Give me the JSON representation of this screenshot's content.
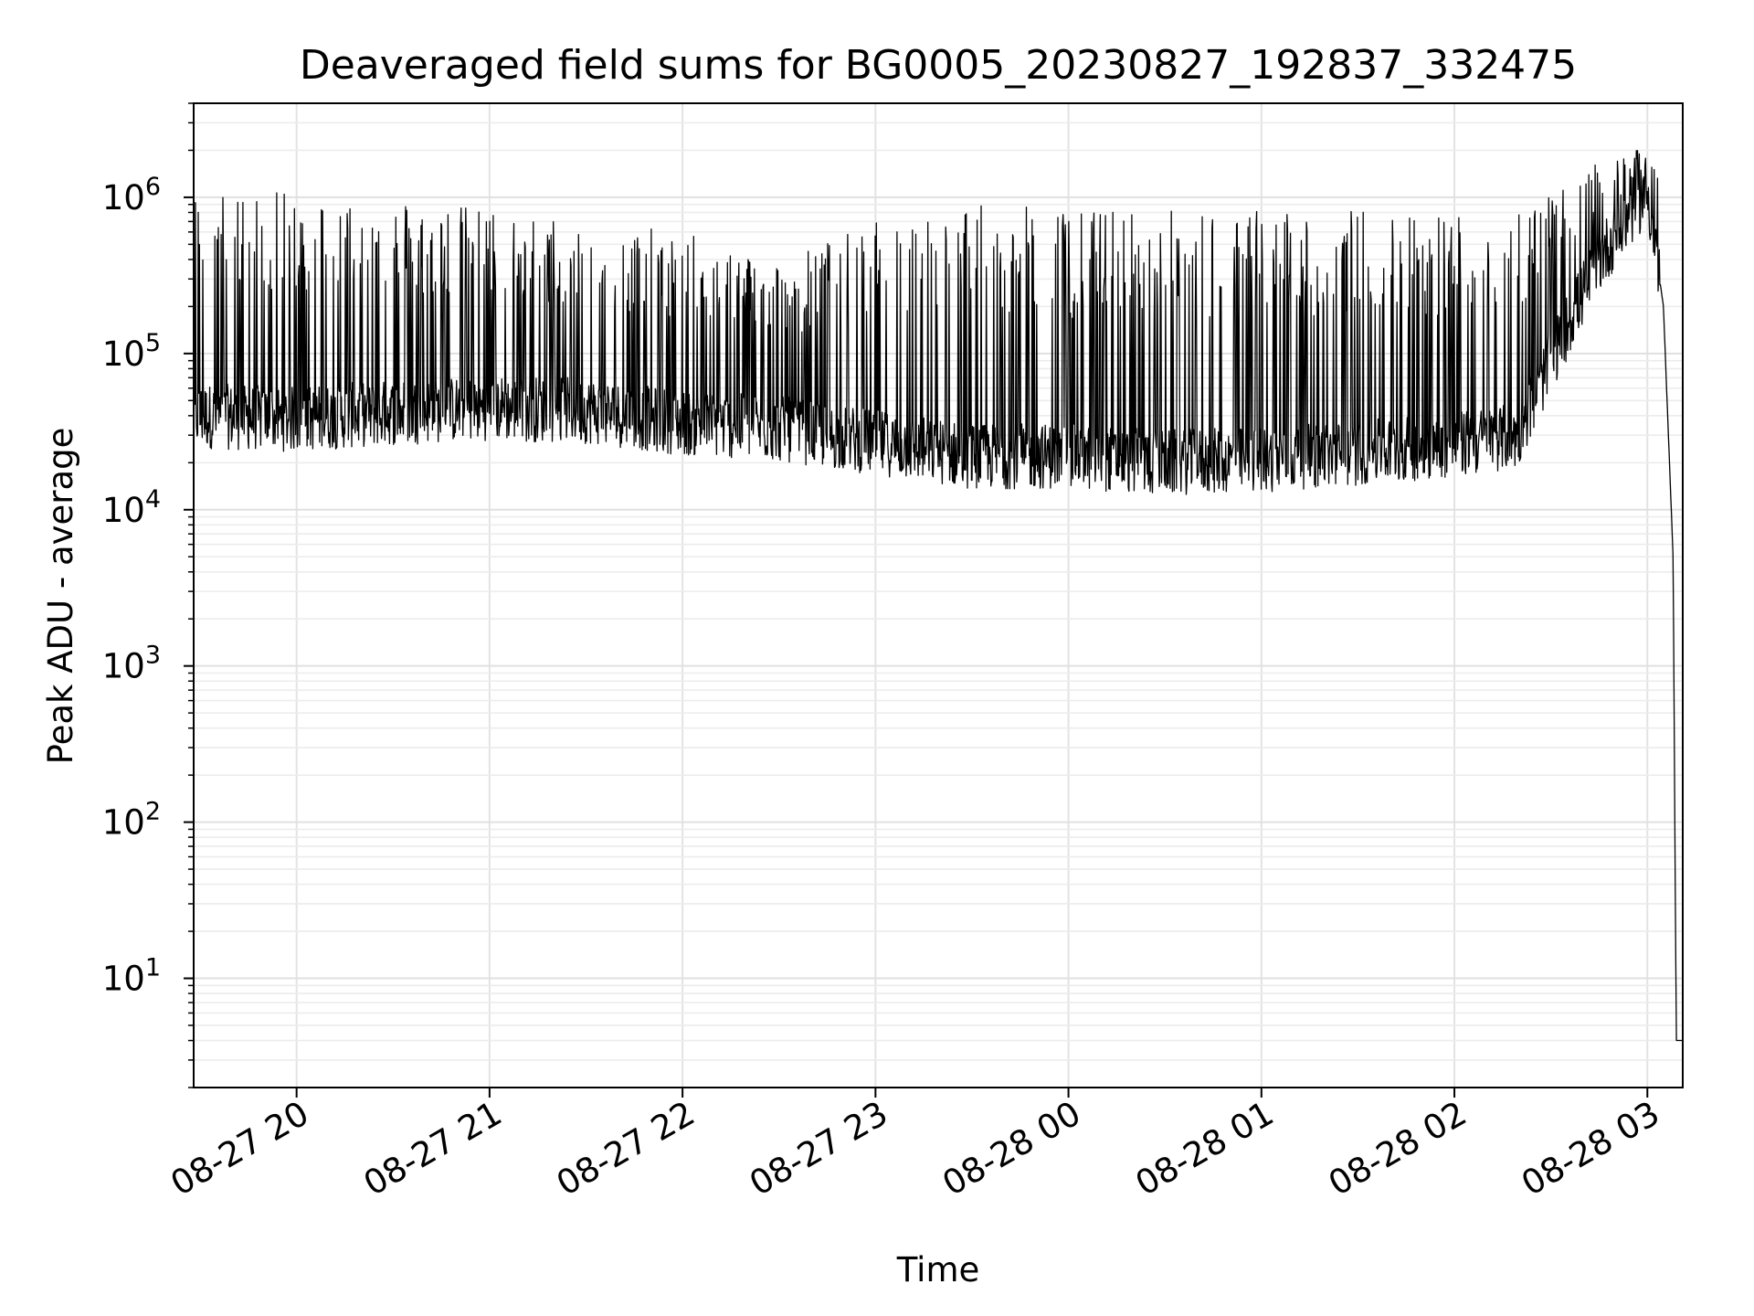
{
  "chart_data": {
    "type": "line",
    "title": "Deaveraged field sums for BG0005_20230827_192837_332475",
    "xlabel": "Time",
    "ylabel": "Peak ADU - average",
    "yscale": "log",
    "ylim": [
      2,
      4000000
    ],
    "xlim": [
      "2023-08-27 19:28",
      "2023-08-28 03:11"
    ],
    "grid": true,
    "grid_minor": true,
    "x_ticks": [
      "08-27 20",
      "08-27 21",
      "08-27 22",
      "08-27 23",
      "08-28 00",
      "08-28 01",
      "08-28 02",
      "08-28 03"
    ],
    "y_ticks": [
      {
        "base": "10",
        "exp": "1"
      },
      {
        "base": "10",
        "exp": "2"
      },
      {
        "base": "10",
        "exp": "3"
      },
      {
        "base": "10",
        "exp": "4"
      },
      {
        "base": "10",
        "exp": "5"
      },
      {
        "base": "10",
        "exp": "6"
      }
    ],
    "series": [
      {
        "color": "#000000",
        "baseline": [
          [
            "2023-08-27 19:28",
            40000
          ],
          [
            "2023-08-27 20:00",
            38000
          ],
          [
            "2023-08-27 20:30",
            42000
          ],
          [
            "2023-08-27 21:00",
            45000
          ],
          [
            "2023-08-27 21:30",
            43000
          ],
          [
            "2023-08-27 22:00",
            36000
          ],
          [
            "2023-08-27 22:30",
            33000
          ],
          [
            "2023-08-27 23:00",
            27000
          ],
          [
            "2023-08-27 23:30",
            22000
          ],
          [
            "2023-08-28 00:00",
            22000
          ],
          [
            "2023-08-28 00:30",
            20000
          ],
          [
            "2023-08-28 01:00",
            21000
          ],
          [
            "2023-08-28 01:30",
            23000
          ],
          [
            "2023-08-28 02:00",
            26000
          ],
          [
            "2023-08-28 02:20",
            30000
          ],
          [
            "2023-08-28 02:30",
            90000
          ],
          [
            "2023-08-28 02:45",
            400000
          ],
          [
            "2023-08-28 02:55",
            800000
          ],
          [
            "2023-08-28 03:00",
            1100000
          ],
          [
            "2023-08-28 03:05",
            200000
          ],
          [
            "2023-08-28 03:08",
            5000
          ],
          [
            "2023-08-28 03:09",
            4
          ],
          [
            "2023-08-28 03:11",
            4
          ]
        ],
        "peaks": [
          [
            "2023-08-27 19:45",
            1100000
          ],
          [
            "2023-08-27 20:10",
            1050000
          ],
          [
            "2023-08-27 20:30",
            1000000
          ],
          [
            "2023-08-27 21:00",
            850000
          ],
          [
            "2023-08-27 21:30",
            700000
          ],
          [
            "2023-08-27 22:00",
            600000
          ],
          [
            "2023-08-27 22:30",
            400000
          ],
          [
            "2023-08-27 23:00",
            700000
          ],
          [
            "2023-08-27 23:30",
            900000
          ],
          [
            "2023-08-28 00:00",
            850000
          ],
          [
            "2023-08-28 00:30",
            850000
          ],
          [
            "2023-08-28 01:00",
            850000
          ],
          [
            "2023-08-28 01:30",
            850000
          ],
          [
            "2023-08-28 02:00",
            850000
          ],
          [
            "2023-08-28 02:30",
            1000000
          ],
          [
            "2023-08-28 02:50",
            2000000
          ]
        ]
      }
    ]
  }
}
